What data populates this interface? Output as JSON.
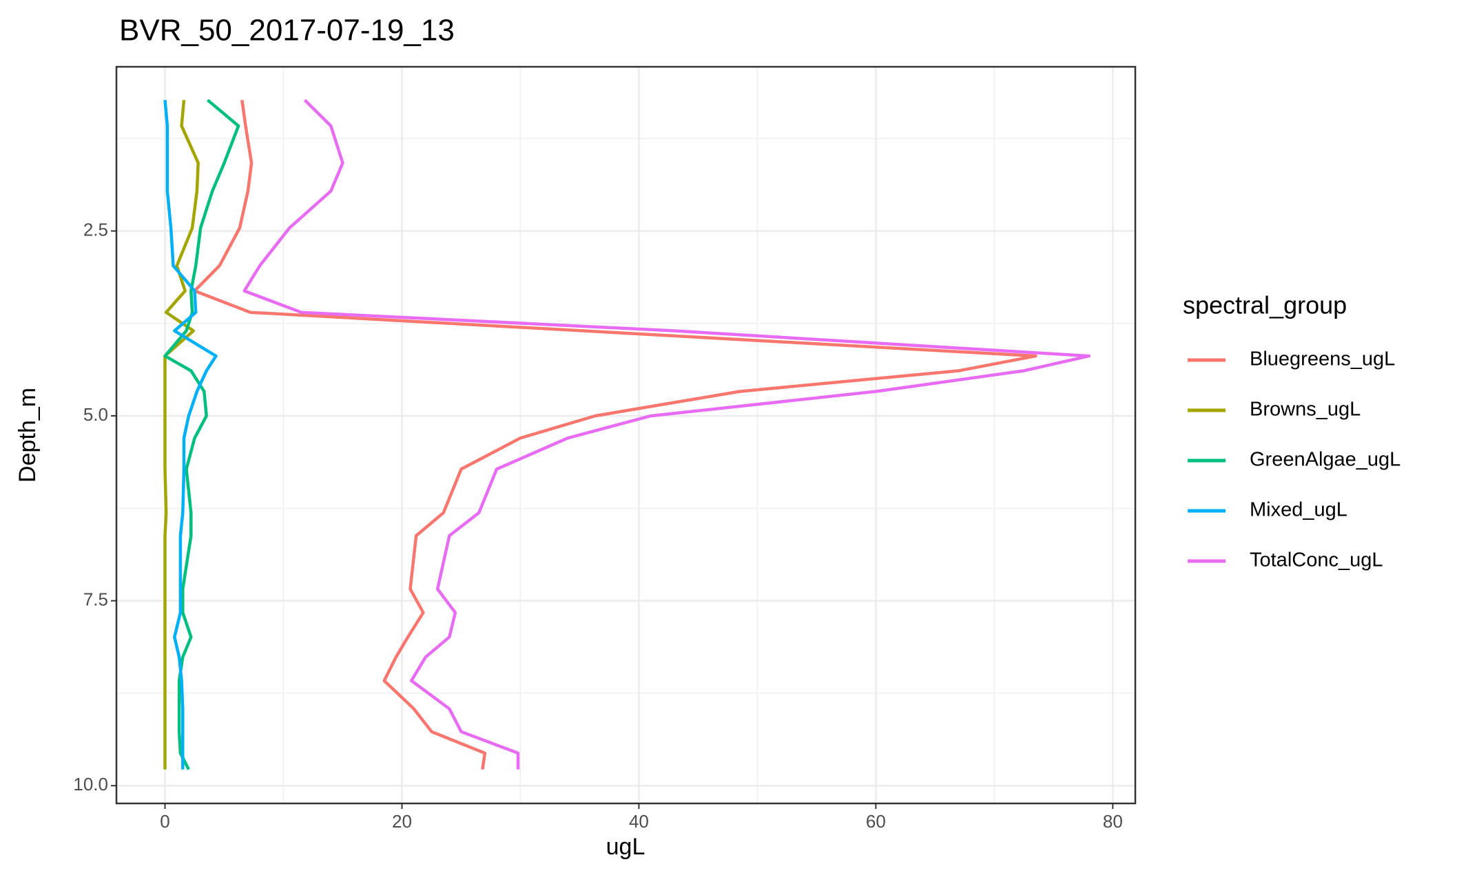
{
  "chart_data": {
    "type": "line",
    "orientation": "horizontal",
    "title": "BVR_50_2017-07-19_13",
    "x_label": "ugL",
    "y_label": "Depth_m",
    "legend_title": "spectral_group",
    "legend_position": "right",
    "y": [
      0.73,
      1.08,
      1.58,
      1.96,
      2.46,
      2.97,
      3.31,
      3.6,
      3.85,
      4.19,
      4.39,
      4.67,
      5.0,
      5.3,
      5.72,
      6.31,
      6.62,
      7.34,
      7.66,
      7.99,
      8.26,
      8.58,
      8.96,
      9.27,
      9.56,
      9.78
    ],
    "y_reversed": true,
    "xlim": [
      -4.1,
      81.9
    ],
    "xticks": [
      0,
      20,
      40,
      60,
      80
    ],
    "ylim": [
      0.28,
      10.24
    ],
    "yticks": [
      2.5,
      {
        "value": 5,
        "label": "5.0"
      },
      7.5,
      {
        "value": 10,
        "label": "10.0"
      }
    ],
    "grid": true,
    "series": [
      {
        "name": "Bluegreens_ugL",
        "color": "#F8766D",
        "values": [
          6.5,
          6.8,
          7.3,
          7.0,
          6.3,
          4.6,
          2.5,
          7.2,
          35.3,
          73.5,
          67,
          48.5,
          36.3,
          30,
          25,
          23.5,
          21.2,
          20.7,
          21.8,
          20.5,
          19.5,
          18.5,
          21,
          22.5,
          27,
          26.8
        ]
      },
      {
        "name": "Browns_ugL",
        "color": "#A3A500",
        "values": [
          1.6,
          1.4,
          2.8,
          2.7,
          2.3,
          1.0,
          1.7,
          0.1,
          2.4,
          0,
          0,
          0,
          0,
          0,
          0,
          0.1,
          0,
          0,
          0,
          0,
          0,
          0,
          0,
          0,
          0,
          0
        ]
      },
      {
        "name": "GreenAlgae_ugL",
        "color": "#00BF7D",
        "values": [
          3.6,
          6.2,
          5.0,
          4.0,
          3.0,
          2.6,
          2.2,
          2.3,
          1.8,
          0,
          2.2,
          3.3,
          3.5,
          2.5,
          1.8,
          2.2,
          2.2,
          1.5,
          1.5,
          2.2,
          1.5,
          1.2,
          1.2,
          1.2,
          1.3,
          2.0
        ]
      },
      {
        "name": "Mixed_ugL",
        "color": "#00B0F6",
        "values": [
          0,
          0.2,
          0.2,
          0.2,
          0.5,
          0.7,
          2.5,
          2.6,
          0.8,
          4.3,
          3.5,
          2.7,
          2.0,
          1.6,
          1.6,
          1.5,
          1.3,
          1.3,
          1.3,
          0.8,
          1.2,
          1.4,
          1.5,
          1.5,
          1.5,
          1.5
        ]
      },
      {
        "name": "TotalConc_ugL",
        "color": "#E76BF3",
        "values": [
          11.8,
          14,
          15,
          14,
          10.5,
          8,
          6.7,
          11.5,
          43,
          78,
          72.5,
          60,
          41,
          34,
          28,
          26.5,
          24,
          23,
          24.5,
          24,
          22,
          20.8,
          24,
          25,
          29.8,
          29.8
        ]
      }
    ]
  }
}
